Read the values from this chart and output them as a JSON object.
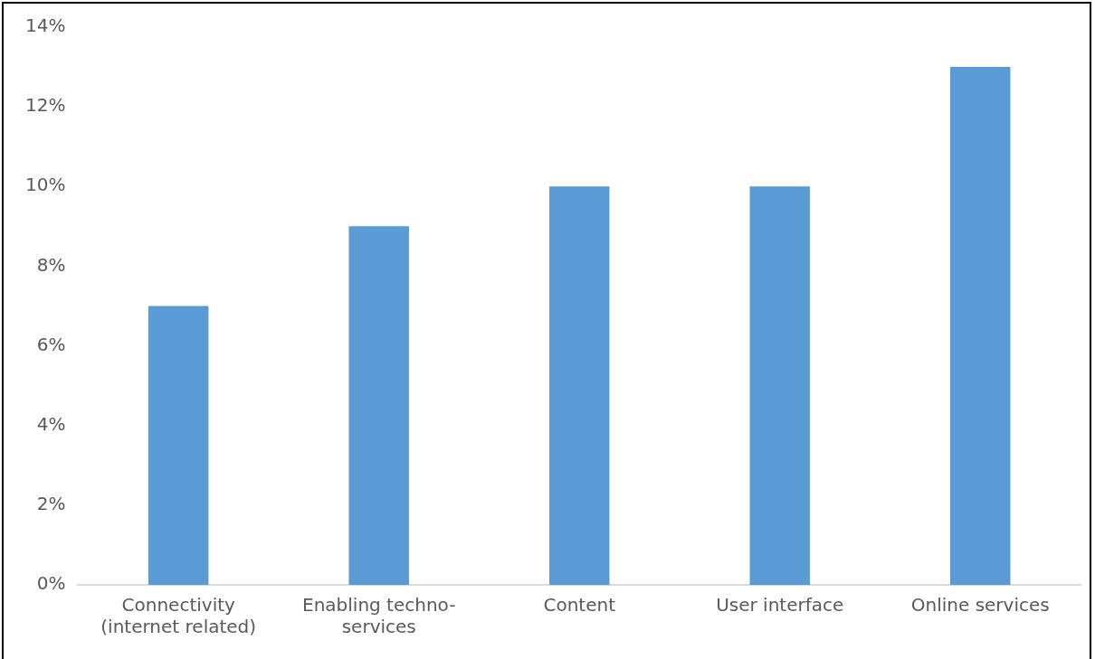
{
  "chart_data": {
    "type": "bar",
    "categories": [
      "Connectivity\n(internet related)",
      "Enabling techno-\nservices",
      "Content",
      "User interface",
      "Online services"
    ],
    "values": [
      7,
      9,
      10,
      10,
      13
    ],
    "color": "#5b9bd5",
    "ylim": [
      0,
      14
    ],
    "yticks": [
      {
        "value": 0,
        "label": "0%"
      },
      {
        "value": 2,
        "label": "2%"
      },
      {
        "value": 4,
        "label": "4%"
      },
      {
        "value": 6,
        "label": "6%"
      },
      {
        "value": 8,
        "label": "8%"
      },
      {
        "value": 10,
        "label": "10%"
      },
      {
        "value": 12,
        "label": "12%"
      },
      {
        "value": 14,
        "label": "14%"
      }
    ],
    "grid": false,
    "legend": false
  }
}
